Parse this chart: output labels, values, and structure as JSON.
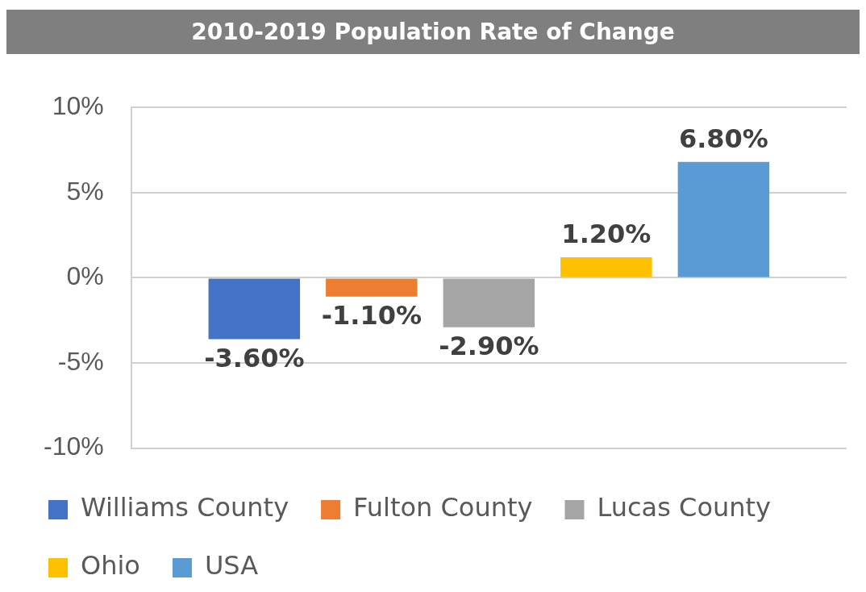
{
  "chart_data": {
    "type": "bar",
    "title": "2010-2019 Population Rate of Change",
    "categories": [
      null
    ],
    "series": [
      {
        "name": "Williams County",
        "color": "#4472c4",
        "values": [
          -3.6
        ],
        "value_labels": [
          "-3.60%"
        ]
      },
      {
        "name": "Fulton County",
        "color": "#ed7d31",
        "values": [
          -1.1
        ],
        "value_labels": [
          "-1.10%"
        ]
      },
      {
        "name": "Lucas County",
        "color": "#a5a5a5",
        "values": [
          -2.9
        ],
        "value_labels": [
          "-2.90%"
        ]
      },
      {
        "name": "Ohio",
        "color": "#ffc000",
        "values": [
          1.2
        ],
        "value_labels": [
          "1.20%"
        ]
      },
      {
        "name": "USA",
        "color": "#5b9bd5",
        "values": [
          6.8
        ],
        "value_labels": [
          "6.80%"
        ]
      }
    ],
    "ylim": [
      -10,
      10
    ],
    "yticks": [
      {
        "value": -10,
        "label": "-10%"
      },
      {
        "value": -5,
        "label": "-5%"
      },
      {
        "value": 0,
        "label": "0%"
      },
      {
        "value": 5,
        "label": "5%"
      },
      {
        "value": 10,
        "label": "10%"
      }
    ],
    "grid": "y",
    "legend": "bottom"
  }
}
